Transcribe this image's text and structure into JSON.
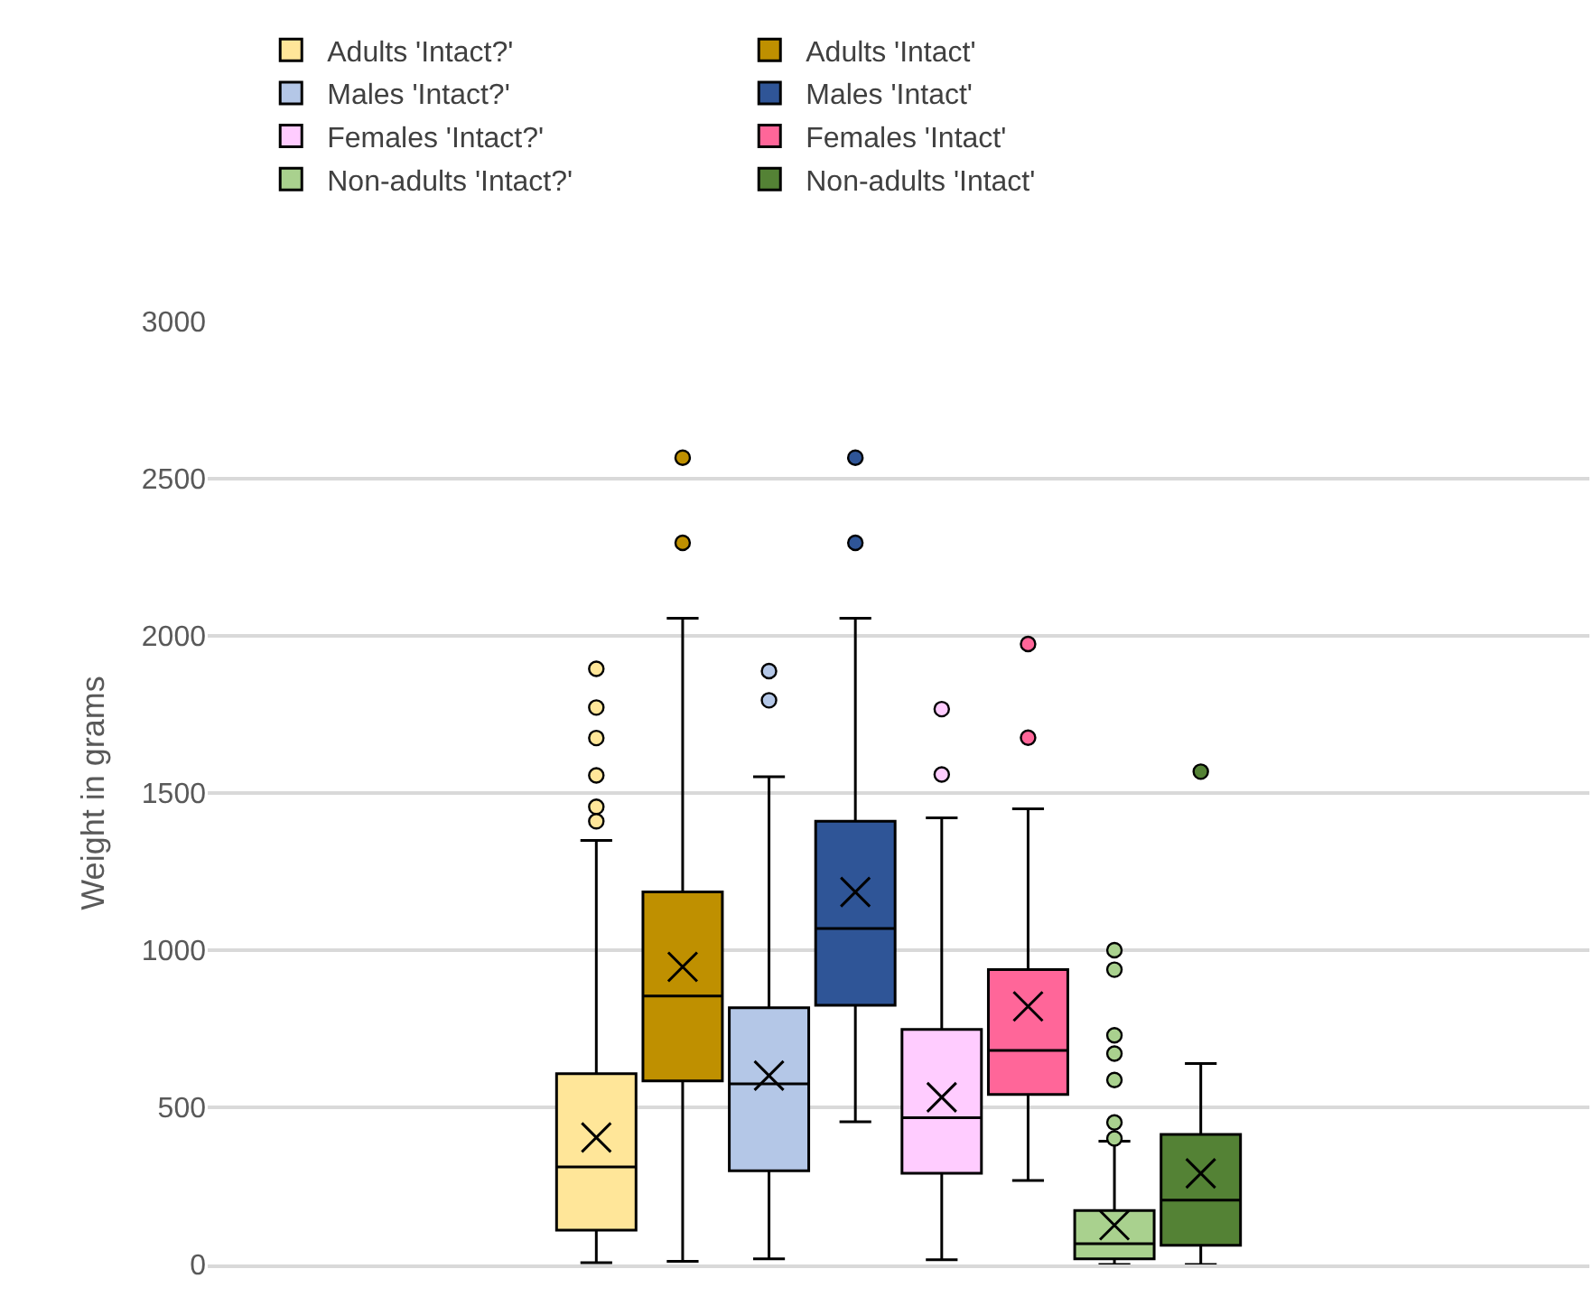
{
  "chart_data": {
    "type": "box",
    "ylabel": "Weight in grams",
    "categories": [
      null
    ],
    "ylim": [
      0,
      3000
    ],
    "yticks": [
      0,
      500,
      1000,
      1500,
      2000,
      2500,
      3000
    ],
    "grid": "y",
    "legend": "top",
    "tick_labels": "y",
    "marker": "circle",
    "series": [
      {
        "name": "Adults 'Intact?'",
        "color": "#ffe699",
        "boxes": [
          {
            "low": 6,
            "q1": 109,
            "median": 310,
            "q3": 607,
            "high": 1349,
            "mean": 404,
            "outliers": [
              1895,
              1772,
              1675,
              1556,
              1456,
              1410
            ]
          }
        ]
      },
      {
        "name": "Adults 'Intact'",
        "color": "#bf9000",
        "boxes": [
          {
            "low": 10,
            "q1": 584,
            "median": 854,
            "q3": 1185,
            "high": 2056,
            "mean": 947,
            "outliers": [
              2567,
              2296
            ]
          }
        ]
      },
      {
        "name": "Males 'Intact?'",
        "color": "#b4c7e7",
        "boxes": [
          {
            "low": 18,
            "q1": 298,
            "median": 575,
            "q3": 817,
            "high": 1552,
            "mean": 601,
            "outliers": [
              1888,
              1795
            ]
          }
        ]
      },
      {
        "name": "Males 'Intact'",
        "color": "#2f5597",
        "boxes": [
          {
            "low": 454,
            "q1": 825,
            "median": 1069,
            "q3": 1410,
            "high": 2056,
            "mean": 1185,
            "outliers": [
              2567,
              2296
            ]
          }
        ]
      },
      {
        "name": "Females 'Intact?'",
        "color": "#ffccff",
        "boxes": [
          {
            "low": 15,
            "q1": 290,
            "median": 467,
            "q3": 748,
            "high": 1421,
            "mean": 532,
            "outliers": [
              1767,
              1559
            ]
          }
        ]
      },
      {
        "name": "Females 'Intact'",
        "color": "#ff6699",
        "boxes": [
          {
            "low": 267,
            "q1": 541,
            "median": 681,
            "q3": 938,
            "high": 1450,
            "mean": 821,
            "outliers": [
              1974,
              1676
            ]
          }
        ]
      },
      {
        "name": "Non-adults 'Intact?'",
        "color": "#a9d18e",
        "boxes": [
          {
            "low": 0,
            "q1": 18,
            "median": 66,
            "q3": 172,
            "high": 392,
            "mean": 125,
            "outliers": [
              1000,
              938,
              729,
              671,
              587,
              452,
              401
            ]
          }
        ]
      },
      {
        "name": "Non-adults 'Intact'",
        "color": "#548235",
        "boxes": [
          {
            "low": 0,
            "q1": 61,
            "median": 205,
            "q3": 414,
            "high": 639,
            "mean": 290,
            "outliers": [
              1568
            ]
          }
        ]
      }
    ]
  }
}
